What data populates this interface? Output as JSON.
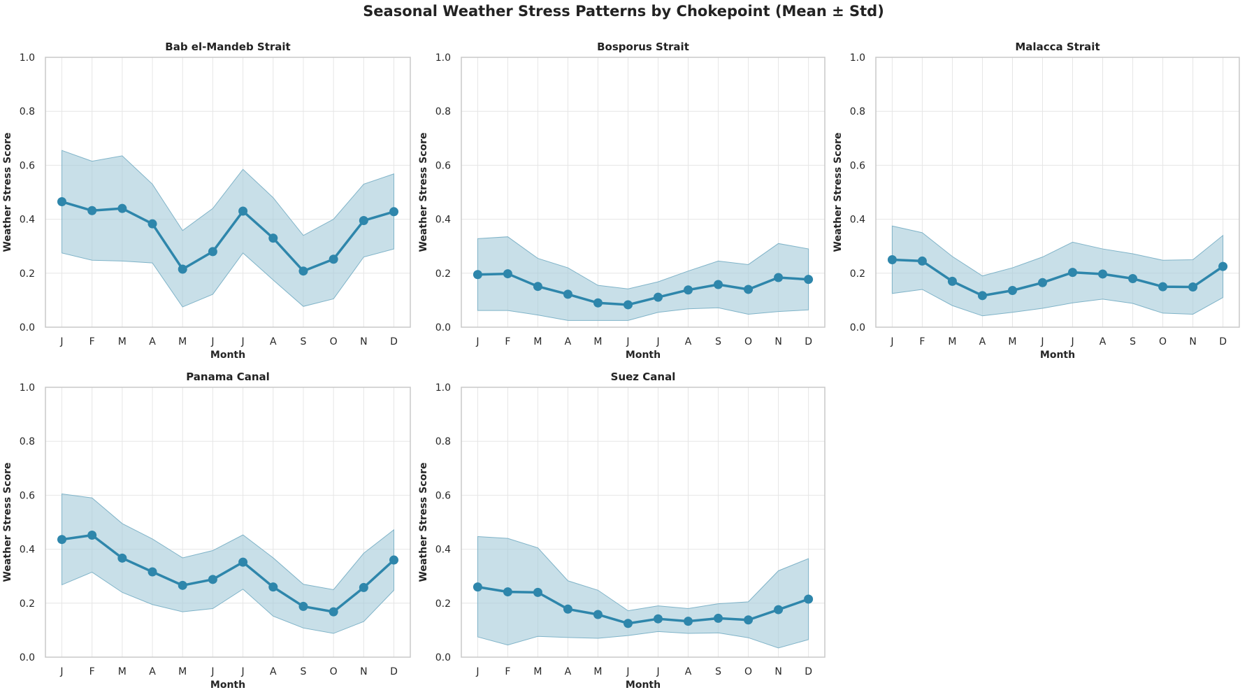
{
  "title": "Seasonal Weather Stress Patterns by Chokepoint (Mean ± Std)",
  "colors": {
    "line": "#2e86ab",
    "band": "#a3cad8",
    "grid": "#e6e6e6",
    "spine": "#c8c8c8"
  },
  "chart_data": [
    {
      "type": "line",
      "title": "Bab el-Mandeb Strait",
      "xlabel": "Month",
      "ylabel": "Weather Stress Score",
      "categories": [
        "J",
        "F",
        "M",
        "A",
        "M",
        "J",
        "J",
        "A",
        "S",
        "O",
        "N",
        "D"
      ],
      "ylim": [
        0,
        1.0
      ],
      "yticks": [
        "0.0",
        "0.2",
        "0.4",
        "0.6",
        "0.8",
        "1.0"
      ],
      "grid": true,
      "series": [
        {
          "mean": [
            0.465,
            0.432,
            0.44,
            0.383,
            0.215,
            0.28,
            0.43,
            0.33,
            0.208,
            0.252,
            0.395,
            0.428
          ],
          "upper": [
            0.655,
            0.615,
            0.635,
            0.53,
            0.358,
            0.44,
            0.585,
            0.48,
            0.34,
            0.4,
            0.53,
            0.568
          ],
          "lower": [
            0.275,
            0.248,
            0.245,
            0.238,
            0.075,
            0.122,
            0.275,
            0.175,
            0.077,
            0.105,
            0.26,
            0.29
          ]
        }
      ]
    },
    {
      "type": "line",
      "title": "Bosporus Strait",
      "xlabel": "Month",
      "ylabel": "Weather Stress Score",
      "categories": [
        "J",
        "F",
        "M",
        "A",
        "M",
        "J",
        "J",
        "A",
        "S",
        "O",
        "N",
        "D"
      ],
      "ylim": [
        0,
        1.0
      ],
      "yticks": [
        "0.0",
        "0.2",
        "0.4",
        "0.6",
        "0.8",
        "1.0"
      ],
      "grid": true,
      "series": [
        {
          "mean": [
            0.195,
            0.198,
            0.151,
            0.122,
            0.09,
            0.083,
            0.111,
            0.138,
            0.158,
            0.14,
            0.184,
            0.177
          ],
          "upper": [
            0.328,
            0.335,
            0.255,
            0.22,
            0.155,
            0.142,
            0.168,
            0.208,
            0.245,
            0.232,
            0.31,
            0.29
          ],
          "lower": [
            0.062,
            0.062,
            0.045,
            0.025,
            0.025,
            0.025,
            0.055,
            0.068,
            0.072,
            0.048,
            0.058,
            0.064
          ]
        }
      ]
    },
    {
      "type": "line",
      "title": "Malacca Strait",
      "xlabel": "Month",
      "ylabel": "Weather Stress Score",
      "categories": [
        "J",
        "F",
        "M",
        "A",
        "M",
        "J",
        "J",
        "A",
        "S",
        "O",
        "N",
        "D"
      ],
      "ylim": [
        0,
        1.0
      ],
      "yticks": [
        "0.0",
        "0.2",
        "0.4",
        "0.6",
        "0.8",
        "1.0"
      ],
      "grid": true,
      "series": [
        {
          "mean": [
            0.25,
            0.245,
            0.17,
            0.117,
            0.136,
            0.165,
            0.203,
            0.197,
            0.18,
            0.15,
            0.149,
            0.225
          ],
          "upper": [
            0.375,
            0.35,
            0.262,
            0.19,
            0.22,
            0.26,
            0.315,
            0.29,
            0.272,
            0.248,
            0.25,
            0.34
          ],
          "lower": [
            0.125,
            0.14,
            0.08,
            0.042,
            0.055,
            0.07,
            0.09,
            0.104,
            0.088,
            0.052,
            0.048,
            0.11
          ]
        }
      ]
    },
    {
      "type": "line",
      "title": "Panama Canal",
      "xlabel": "Month",
      "ylabel": "Weather Stress Score",
      "categories": [
        "J",
        "F",
        "M",
        "A",
        "M",
        "J",
        "J",
        "A",
        "S",
        "O",
        "N",
        "D"
      ],
      "ylim": [
        0,
        1.0
      ],
      "yticks": [
        "0.0",
        "0.2",
        "0.4",
        "0.6",
        "0.8",
        "1.0"
      ],
      "grid": true,
      "series": [
        {
          "mean": [
            0.436,
            0.452,
            0.367,
            0.316,
            0.266,
            0.288,
            0.352,
            0.26,
            0.188,
            0.168,
            0.258,
            0.36
          ],
          "upper": [
            0.605,
            0.59,
            0.495,
            0.438,
            0.368,
            0.395,
            0.453,
            0.368,
            0.27,
            0.25,
            0.385,
            0.472
          ],
          "lower": [
            0.268,
            0.315,
            0.24,
            0.195,
            0.168,
            0.18,
            0.252,
            0.152,
            0.108,
            0.088,
            0.132,
            0.248
          ]
        }
      ]
    },
    {
      "type": "line",
      "title": "Suez Canal",
      "xlabel": "Month",
      "ylabel": "Weather Stress Score",
      "categories": [
        "J",
        "F",
        "M",
        "A",
        "M",
        "J",
        "J",
        "A",
        "S",
        "O",
        "N",
        "D"
      ],
      "ylim": [
        0,
        1.0
      ],
      "yticks": [
        "0.0",
        "0.2",
        "0.4",
        "0.6",
        "0.8",
        "1.0"
      ],
      "grid": true,
      "series": [
        {
          "mean": [
            0.26,
            0.242,
            0.24,
            0.178,
            0.158,
            0.125,
            0.142,
            0.133,
            0.144,
            0.138,
            0.176,
            0.215
          ],
          "upper": [
            0.447,
            0.44,
            0.405,
            0.283,
            0.248,
            0.172,
            0.19,
            0.18,
            0.198,
            0.205,
            0.32,
            0.365
          ],
          "lower": [
            0.075,
            0.045,
            0.077,
            0.073,
            0.07,
            0.08,
            0.095,
            0.088,
            0.09,
            0.072,
            0.034,
            0.065
          ]
        }
      ]
    }
  ]
}
